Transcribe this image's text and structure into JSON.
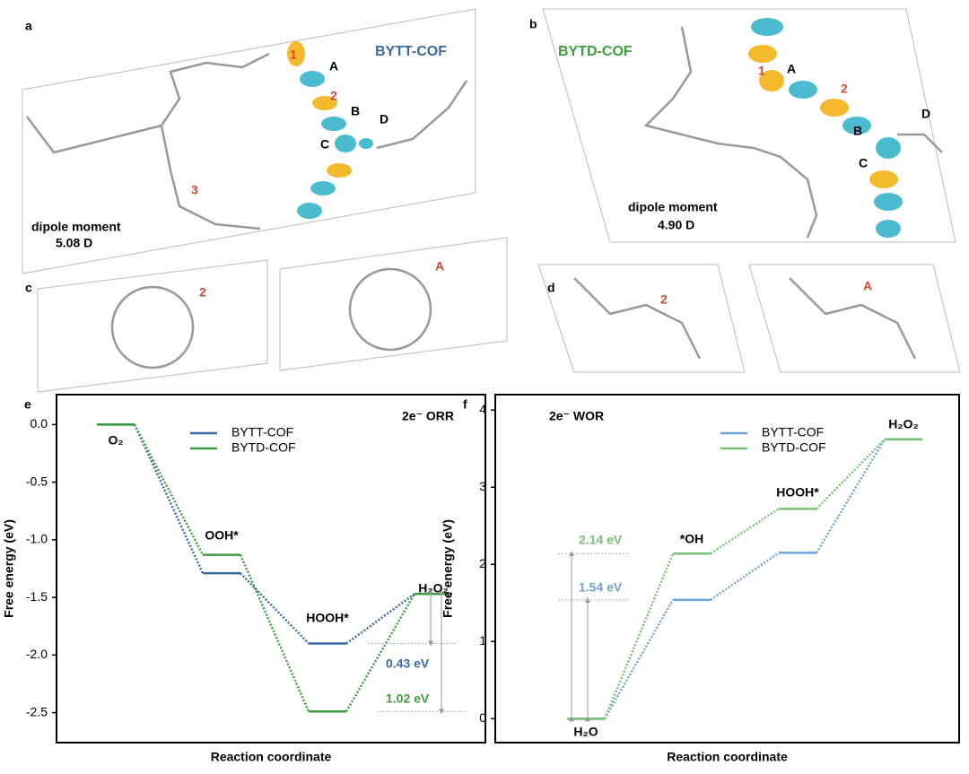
{
  "panels": {
    "a": {
      "letter": "a",
      "title": "BYTT-COF",
      "dipole_label": "dipole moment",
      "dipole_value": "5.08 D",
      "sites": [
        "1",
        "A",
        "2",
        "B",
        "C",
        "D",
        "3"
      ]
    },
    "b": {
      "letter": "b",
      "title": "BYTD-COF",
      "dipole_label": "dipole moment",
      "dipole_value": "4.90 D",
      "sites": [
        "1",
        "A",
        "2",
        "B",
        "C",
        "D"
      ]
    },
    "c": {
      "letter": "c",
      "sites": [
        "2",
        "A"
      ]
    },
    "d": {
      "letter": "d",
      "sites": [
        "2",
        "A"
      ]
    }
  },
  "chart_data": [
    {
      "type": "energy-diagram",
      "panel": "e",
      "annotation": "2e⁻ ORR",
      "ylabel": "Free energy (eV)",
      "xlabel": "Reaction coordinate",
      "categories": [
        "O₂",
        "OOH*",
        "HOOH*",
        "H₂O₂"
      ],
      "series": [
        {
          "name": "BYTT-COF",
          "color": "#3a6aa3",
          "values": [
            0,
            -1.29,
            -1.9,
            -1.47
          ]
        },
        {
          "name": "BYTD-COF",
          "color": "#3c9e3f",
          "values": [
            0,
            -1.13,
            -2.49,
            -1.47
          ]
        }
      ],
      "gap_labels": [
        "0.43 eV",
        "1.02 eV"
      ],
      "ylim": [
        -2.76,
        0.26
      ],
      "yticks": [
        {
          "value": 0,
          "label": "0.0"
        },
        -0.5,
        {
          "value": -1,
          "label": "-1.0"
        },
        -1.5,
        {
          "value": -2,
          "label": "-2.0"
        },
        -2.5
      ],
      "legend": "top"
    },
    {
      "type": "energy-diagram",
      "panel": "f",
      "annotation": "2e⁻ WOR",
      "ylabel": "Free energy (eV)",
      "xlabel": "Reaction coordinate",
      "categories": [
        "H₂O",
        "*OH",
        "HOOH*",
        "H₂O₂"
      ],
      "series": [
        {
          "name": "BYTT-COF",
          "color": "#6fa3d8",
          "values": [
            0,
            1.54,
            2.15,
            3.62
          ]
        },
        {
          "name": "BYTD-COF",
          "color": "#78c174",
          "values": [
            0,
            2.14,
            2.72,
            3.62
          ]
        }
      ],
      "gap_labels": [
        "2.14 eV",
        "1.54 eV"
      ],
      "ylim": [
        -0.31,
        4.2
      ],
      "yticks": [
        0,
        1,
        2,
        3,
        4
      ],
      "legend": "top"
    }
  ]
}
